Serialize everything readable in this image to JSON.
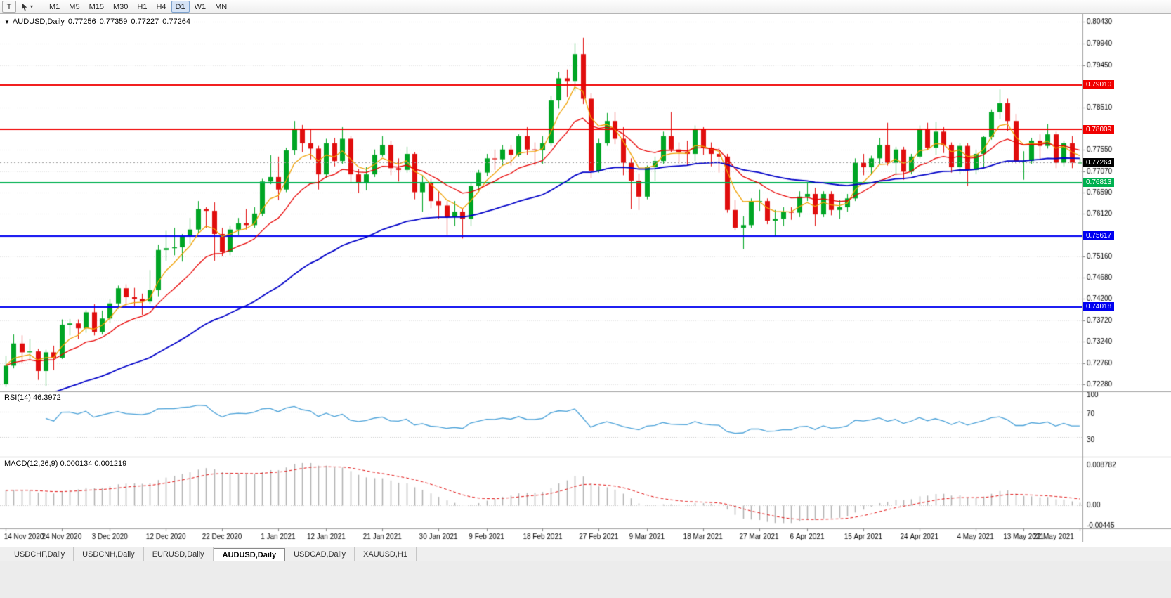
{
  "toolbar": {
    "t_label": "T",
    "caret": "▾",
    "timeframes": [
      "M1",
      "M5",
      "M15",
      "M30",
      "H1",
      "H4",
      "D1",
      "W1",
      "MN"
    ],
    "active_timeframe": "D1"
  },
  "chart_header": {
    "collapse_icon": "▼",
    "symbol": "AUDUSD,Daily",
    "open": "0.77256",
    "high": "0.77359",
    "low": "0.77227",
    "close": "0.77264"
  },
  "rsi": {
    "header": "RSI(14) 46.3972"
  },
  "macd": {
    "header": "MACD(12,26,9) 0.000134 0.001219"
  },
  "tabs": [
    {
      "label": "USDCHF,Daily",
      "active": false
    },
    {
      "label": "USDCNH,Daily",
      "active": false
    },
    {
      "label": "EURUSD,Daily",
      "active": false
    },
    {
      "label": "AUDUSD,Daily",
      "active": true
    },
    {
      "label": "USDCAD,Daily",
      "active": false
    },
    {
      "label": "XAUUSD,H1",
      "active": false
    }
  ],
  "chart_data": {
    "type": "candlestick",
    "symb": "AUDUSD",
    "timeframe": "Daily",
    "title": "AUDUSD,Daily 0.77256 0.77359 0.77227 0.77264",
    "colors": {
      "up": "#00a524",
      "down": "#e00d0d",
      "ma_fast": "#f0a000",
      "ma_mid": "#e80000",
      "ma_slow": "#0000c8",
      "hline_red": "#f00000",
      "hline_green": "#00b050",
      "hline_blue": "#0000f0",
      "rsi_line": "#4aa1d8",
      "macd_hist": "#b0b0b0",
      "macd_signal": "#e01010",
      "grid": "#e3e3e3",
      "separator": "#a0a0a0",
      "current_badge_bg": "#000000"
    },
    "y_ticks": [
      {
        "v": 0.8043,
        "t": "0.80430"
      },
      {
        "v": 0.7994,
        "t": "0.79940"
      },
      {
        "v": 0.7945,
        "t": "0.79450"
      },
      {
        "v": 0.7851,
        "t": "0.78510"
      },
      {
        "v": 0.7755,
        "t": "0.77550"
      },
      {
        "v": 0.7707,
        "t": "0.77070"
      },
      {
        "v": 0.7659,
        "t": "0.76590"
      },
      {
        "v": 0.7612,
        "t": "0.76120"
      },
      {
        "v": 0.7516,
        "t": "0.75160"
      },
      {
        "v": 0.7468,
        "t": "0.74680"
      },
      {
        "v": 0.742,
        "t": "0.74200"
      },
      {
        "v": 0.7372,
        "t": "0.73720"
      },
      {
        "v": 0.7324,
        "t": "0.73240"
      },
      {
        "v": 0.7276,
        "t": "0.72760"
      },
      {
        "v": 0.7228,
        "t": "0.72280"
      }
    ],
    "hlines": [
      {
        "value": 0.7901,
        "label": "0.79010",
        "color": "#f00000"
      },
      {
        "value": 0.78009,
        "label": "0.78009",
        "color": "#f00000"
      },
      {
        "value": 0.76813,
        "label": "0.76813",
        "color": "#00b050"
      },
      {
        "value": 0.75617,
        "label": "0.75617",
        "color": "#0000f0"
      },
      {
        "value": 0.74018,
        "label": "0.74018",
        "color": "#0000f0"
      }
    ],
    "current_price": {
      "value": 0.77264,
      "label": "0.77264"
    },
    "x_labels": [
      {
        "i": 0,
        "t": "14 Nov 2020"
      },
      {
        "i": 7,
        "t": "24 Nov 2020"
      },
      {
        "i": 13,
        "t": "3 Dec 2020"
      },
      {
        "i": 20,
        "t": "12 Dec 2020"
      },
      {
        "i": 27,
        "t": "22 Dec 2020"
      },
      {
        "i": 34,
        "t": "1 Jan 2021"
      },
      {
        "i": 40,
        "t": "12 Jan 2021"
      },
      {
        "i": 47,
        "t": "21 Jan 2021"
      },
      {
        "i": 54,
        "t": "30 Jan 2021"
      },
      {
        "i": 60,
        "t": "9 Feb 2021"
      },
      {
        "i": 67,
        "t": "18 Feb 2021"
      },
      {
        "i": 74,
        "t": "27 Feb 2021"
      },
      {
        "i": 80,
        "t": "9 Mar 2021"
      },
      {
        "i": 87,
        "t": "18 Mar 2021"
      },
      {
        "i": 94,
        "t": "27 Mar 2021"
      },
      {
        "i": 100,
        "t": "6 Apr 2021"
      },
      {
        "i": 107,
        "t": "15 Apr 2021"
      },
      {
        "i": 114,
        "t": "24 Apr 2021"
      },
      {
        "i": 121,
        "t": "4 May 2021"
      },
      {
        "i": 127,
        "t": "13 May 2021"
      },
      {
        "i": 134,
        "t": "22 May 2021"
      }
    ],
    "moving_averages": [
      {
        "period": 5,
        "color": "#f0a000",
        "seed": null
      },
      {
        "period": 13,
        "color": "#e80000",
        "seed": null
      },
      {
        "period": 45,
        "color": "#0000c8",
        "seed": 0.718
      }
    ],
    "rsi": {
      "period": 14,
      "value": 46.3972,
      "levels": [
        {
          "v": 100,
          "t": "100"
        },
        {
          "v": 70,
          "t": "70"
        },
        {
          "v": 30,
          "t": "30"
        }
      ]
    },
    "macd": {
      "fast": 12,
      "slow": 26,
      "signal": 9,
      "value": 0.000134,
      "signal_value": 0.001219,
      "seed_offset": 0.0035,
      "levels": [
        {
          "v": 0.008782,
          "t": "0.008782"
        },
        {
          "v": 0.0,
          "t": "0.00"
        },
        {
          "v": -0.00445,
          "t": "-0.00445"
        }
      ]
    },
    "candles": [
      [
        0.7228,
        0.7292,
        0.7222,
        0.727
      ],
      [
        0.727,
        0.734,
        0.7264,
        0.732
      ],
      [
        0.732,
        0.7338,
        0.7276,
        0.73
      ],
      [
        0.73,
        0.733,
        0.7282,
        0.7302
      ],
      [
        0.7302,
        0.7308,
        0.7238,
        0.7258
      ],
      [
        0.7258,
        0.7306,
        0.7224,
        0.73
      ],
      [
        0.73,
        0.7315,
        0.726,
        0.7288
      ],
      [
        0.7288,
        0.7374,
        0.7285,
        0.7362
      ],
      [
        0.7362,
        0.7375,
        0.7338,
        0.7365
      ],
      [
        0.7365,
        0.7374,
        0.733,
        0.7354
      ],
      [
        0.7354,
        0.7395,
        0.7344,
        0.739
      ],
      [
        0.739,
        0.7408,
        0.7338,
        0.7346
      ],
      [
        0.7346,
        0.7394,
        0.734,
        0.7376
      ],
      [
        0.7376,
        0.742,
        0.7366,
        0.741
      ],
      [
        0.741,
        0.745,
        0.7398,
        0.7444
      ],
      [
        0.7444,
        0.7453,
        0.74,
        0.7424
      ],
      [
        0.7424,
        0.7445,
        0.7404,
        0.742
      ],
      [
        0.742,
        0.7432,
        0.7384,
        0.7414
      ],
      [
        0.7414,
        0.7485,
        0.7408,
        0.744
      ],
      [
        0.744,
        0.7542,
        0.7426,
        0.753
      ],
      [
        0.753,
        0.7573,
        0.7506,
        0.7534
      ],
      [
        0.7534,
        0.758,
        0.7518,
        0.7536
      ],
      [
        0.7536,
        0.7566,
        0.7504,
        0.756
      ],
      [
        0.756,
        0.7602,
        0.7544,
        0.7576
      ],
      [
        0.7576,
        0.764,
        0.7568,
        0.7622
      ],
      [
        0.7622,
        0.7626,
        0.758,
        0.7618
      ],
      [
        0.7618,
        0.7637,
        0.7506,
        0.7566
      ],
      [
        0.7566,
        0.758,
        0.7516,
        0.7526
      ],
      [
        0.7526,
        0.7585,
        0.7518,
        0.7576
      ],
      [
        0.7576,
        0.7602,
        0.7564,
        0.759
      ],
      [
        0.759,
        0.7622,
        0.7576,
        0.7586
      ],
      [
        0.7586,
        0.7626,
        0.758,
        0.7612
      ],
      [
        0.7612,
        0.769,
        0.7606,
        0.7684
      ],
      [
        0.7684,
        0.7743,
        0.7678,
        0.7694
      ],
      [
        0.7694,
        0.774,
        0.7642,
        0.7666
      ],
      [
        0.7666,
        0.776,
        0.766,
        0.7754
      ],
      [
        0.7754,
        0.782,
        0.7744,
        0.78
      ],
      [
        0.78,
        0.7811,
        0.775,
        0.777
      ],
      [
        0.777,
        0.78,
        0.7734,
        0.7758
      ],
      [
        0.7758,
        0.7764,
        0.7666,
        0.77
      ],
      [
        0.77,
        0.778,
        0.7692,
        0.777
      ],
      [
        0.777,
        0.7782,
        0.7718,
        0.773
      ],
      [
        0.773,
        0.7806,
        0.7724,
        0.778
      ],
      [
        0.778,
        0.7786,
        0.768,
        0.77
      ],
      [
        0.77,
        0.7712,
        0.7658,
        0.768
      ],
      [
        0.768,
        0.7716,
        0.7664,
        0.77
      ],
      [
        0.77,
        0.7756,
        0.7694,
        0.7744
      ],
      [
        0.7744,
        0.7786,
        0.774,
        0.7766
      ],
      [
        0.7766,
        0.7776,
        0.7698,
        0.7714
      ],
      [
        0.7714,
        0.7736,
        0.7684,
        0.771
      ],
      [
        0.771,
        0.7762,
        0.7704,
        0.7746
      ],
      [
        0.7746,
        0.775,
        0.7644,
        0.766
      ],
      [
        0.766,
        0.7696,
        0.7616,
        0.768
      ],
      [
        0.768,
        0.769,
        0.7624,
        0.764
      ],
      [
        0.764,
        0.7662,
        0.76,
        0.763
      ],
      [
        0.763,
        0.764,
        0.7564,
        0.7604
      ],
      [
        0.7604,
        0.764,
        0.7584,
        0.7616
      ],
      [
        0.7616,
        0.7622,
        0.7556,
        0.76
      ],
      [
        0.76,
        0.768,
        0.7584,
        0.7674
      ],
      [
        0.7674,
        0.771,
        0.766,
        0.7704
      ],
      [
        0.7704,
        0.7746,
        0.7696,
        0.7736
      ],
      [
        0.7736,
        0.7756,
        0.771,
        0.7734
      ],
      [
        0.7734,
        0.7766,
        0.772,
        0.7756
      ],
      [
        0.7756,
        0.7766,
        0.772,
        0.7744
      ],
      [
        0.7744,
        0.779,
        0.774,
        0.7786
      ],
      [
        0.7786,
        0.7806,
        0.7744,
        0.7756
      ],
      [
        0.7756,
        0.7772,
        0.772,
        0.7754
      ],
      [
        0.7754,
        0.7786,
        0.7724,
        0.777
      ],
      [
        0.777,
        0.7877,
        0.7764,
        0.7866
      ],
      [
        0.7866,
        0.793,
        0.7848,
        0.7916
      ],
      [
        0.7916,
        0.7936,
        0.7874,
        0.791
      ],
      [
        0.791,
        0.7995,
        0.7886,
        0.797
      ],
      [
        0.797,
        0.8007,
        0.7858,
        0.787
      ],
      [
        0.787,
        0.7882,
        0.7692,
        0.7708
      ],
      [
        0.7708,
        0.778,
        0.7704,
        0.777
      ],
      [
        0.777,
        0.7838,
        0.7764,
        0.782
      ],
      [
        0.782,
        0.784,
        0.7768,
        0.778
      ],
      [
        0.778,
        0.7806,
        0.7698,
        0.7726
      ],
      [
        0.7726,
        0.7736,
        0.7622,
        0.7686
      ],
      [
        0.7686,
        0.7702,
        0.762,
        0.765
      ],
      [
        0.765,
        0.772,
        0.7644,
        0.7716
      ],
      [
        0.7716,
        0.774,
        0.7686,
        0.773
      ],
      [
        0.773,
        0.7796,
        0.7724,
        0.7786
      ],
      [
        0.7786,
        0.784,
        0.775,
        0.7756
      ],
      [
        0.7756,
        0.7772,
        0.7724,
        0.775
      ],
      [
        0.775,
        0.7776,
        0.772,
        0.7746
      ],
      [
        0.7746,
        0.781,
        0.773,
        0.78
      ],
      [
        0.78,
        0.7806,
        0.7744,
        0.776
      ],
      [
        0.776,
        0.7772,
        0.7718,
        0.7746
      ],
      [
        0.7746,
        0.776,
        0.7704,
        0.774
      ],
      [
        0.774,
        0.7746,
        0.7614,
        0.762
      ],
      [
        0.762,
        0.7642,
        0.7574,
        0.758
      ],
      [
        0.758,
        0.7606,
        0.7532,
        0.7586
      ],
      [
        0.7586,
        0.7646,
        0.758,
        0.764
      ],
      [
        0.764,
        0.7666,
        0.7618,
        0.764
      ],
      [
        0.764,
        0.7646,
        0.7588,
        0.7596
      ],
      [
        0.7596,
        0.762,
        0.7562,
        0.76
      ],
      [
        0.76,
        0.7626,
        0.7584,
        0.7616
      ],
      [
        0.7616,
        0.7626,
        0.7598,
        0.7614
      ],
      [
        0.7614,
        0.7662,
        0.7604,
        0.765
      ],
      [
        0.765,
        0.768,
        0.764,
        0.7656
      ],
      [
        0.7656,
        0.767,
        0.7584,
        0.761
      ],
      [
        0.761,
        0.7662,
        0.7604,
        0.7656
      ],
      [
        0.7656,
        0.7662,
        0.7608,
        0.762
      ],
      [
        0.762,
        0.7642,
        0.76,
        0.7626
      ],
      [
        0.7626,
        0.7656,
        0.7616,
        0.7646
      ],
      [
        0.7646,
        0.7736,
        0.764,
        0.7726
      ],
      [
        0.7726,
        0.7746,
        0.7698,
        0.7716
      ],
      [
        0.7716,
        0.7742,
        0.77,
        0.7736
      ],
      [
        0.7736,
        0.7782,
        0.7724,
        0.7766
      ],
      [
        0.7766,
        0.7816,
        0.772,
        0.7726
      ],
      [
        0.7726,
        0.7762,
        0.7698,
        0.7756
      ],
      [
        0.7756,
        0.7762,
        0.7688,
        0.7706
      ],
      [
        0.7706,
        0.7746,
        0.77,
        0.774
      ],
      [
        0.774,
        0.781,
        0.7736,
        0.78
      ],
      [
        0.78,
        0.7816,
        0.7754,
        0.776
      ],
      [
        0.776,
        0.7818,
        0.7744,
        0.7796
      ],
      [
        0.7796,
        0.7806,
        0.7748,
        0.7766
      ],
      [
        0.7766,
        0.7772,
        0.7704,
        0.7716
      ],
      [
        0.7716,
        0.777,
        0.77,
        0.7764
      ],
      [
        0.7764,
        0.777,
        0.7674,
        0.771
      ],
      [
        0.771,
        0.7756,
        0.77,
        0.7746
      ],
      [
        0.7746,
        0.7786,
        0.7714,
        0.7784
      ],
      [
        0.7784,
        0.7846,
        0.7778,
        0.784
      ],
      [
        0.784,
        0.7891,
        0.7824,
        0.786
      ],
      [
        0.786,
        0.787,
        0.7798,
        0.782
      ],
      [
        0.782,
        0.7836,
        0.7724,
        0.773
      ],
      [
        0.773,
        0.7752,
        0.7688,
        0.773
      ],
      [
        0.773,
        0.7782,
        0.7724,
        0.7776
      ],
      [
        0.7776,
        0.779,
        0.7734,
        0.7764
      ],
      [
        0.7764,
        0.7813,
        0.7758,
        0.779
      ],
      [
        0.779,
        0.7796,
        0.7714,
        0.7726
      ],
      [
        0.7726,
        0.7776,
        0.7718,
        0.777
      ],
      [
        0.777,
        0.7786,
        0.7714,
        0.7726
      ],
      [
        0.77256,
        0.77359,
        0.77227,
        0.77264
      ]
    ]
  }
}
